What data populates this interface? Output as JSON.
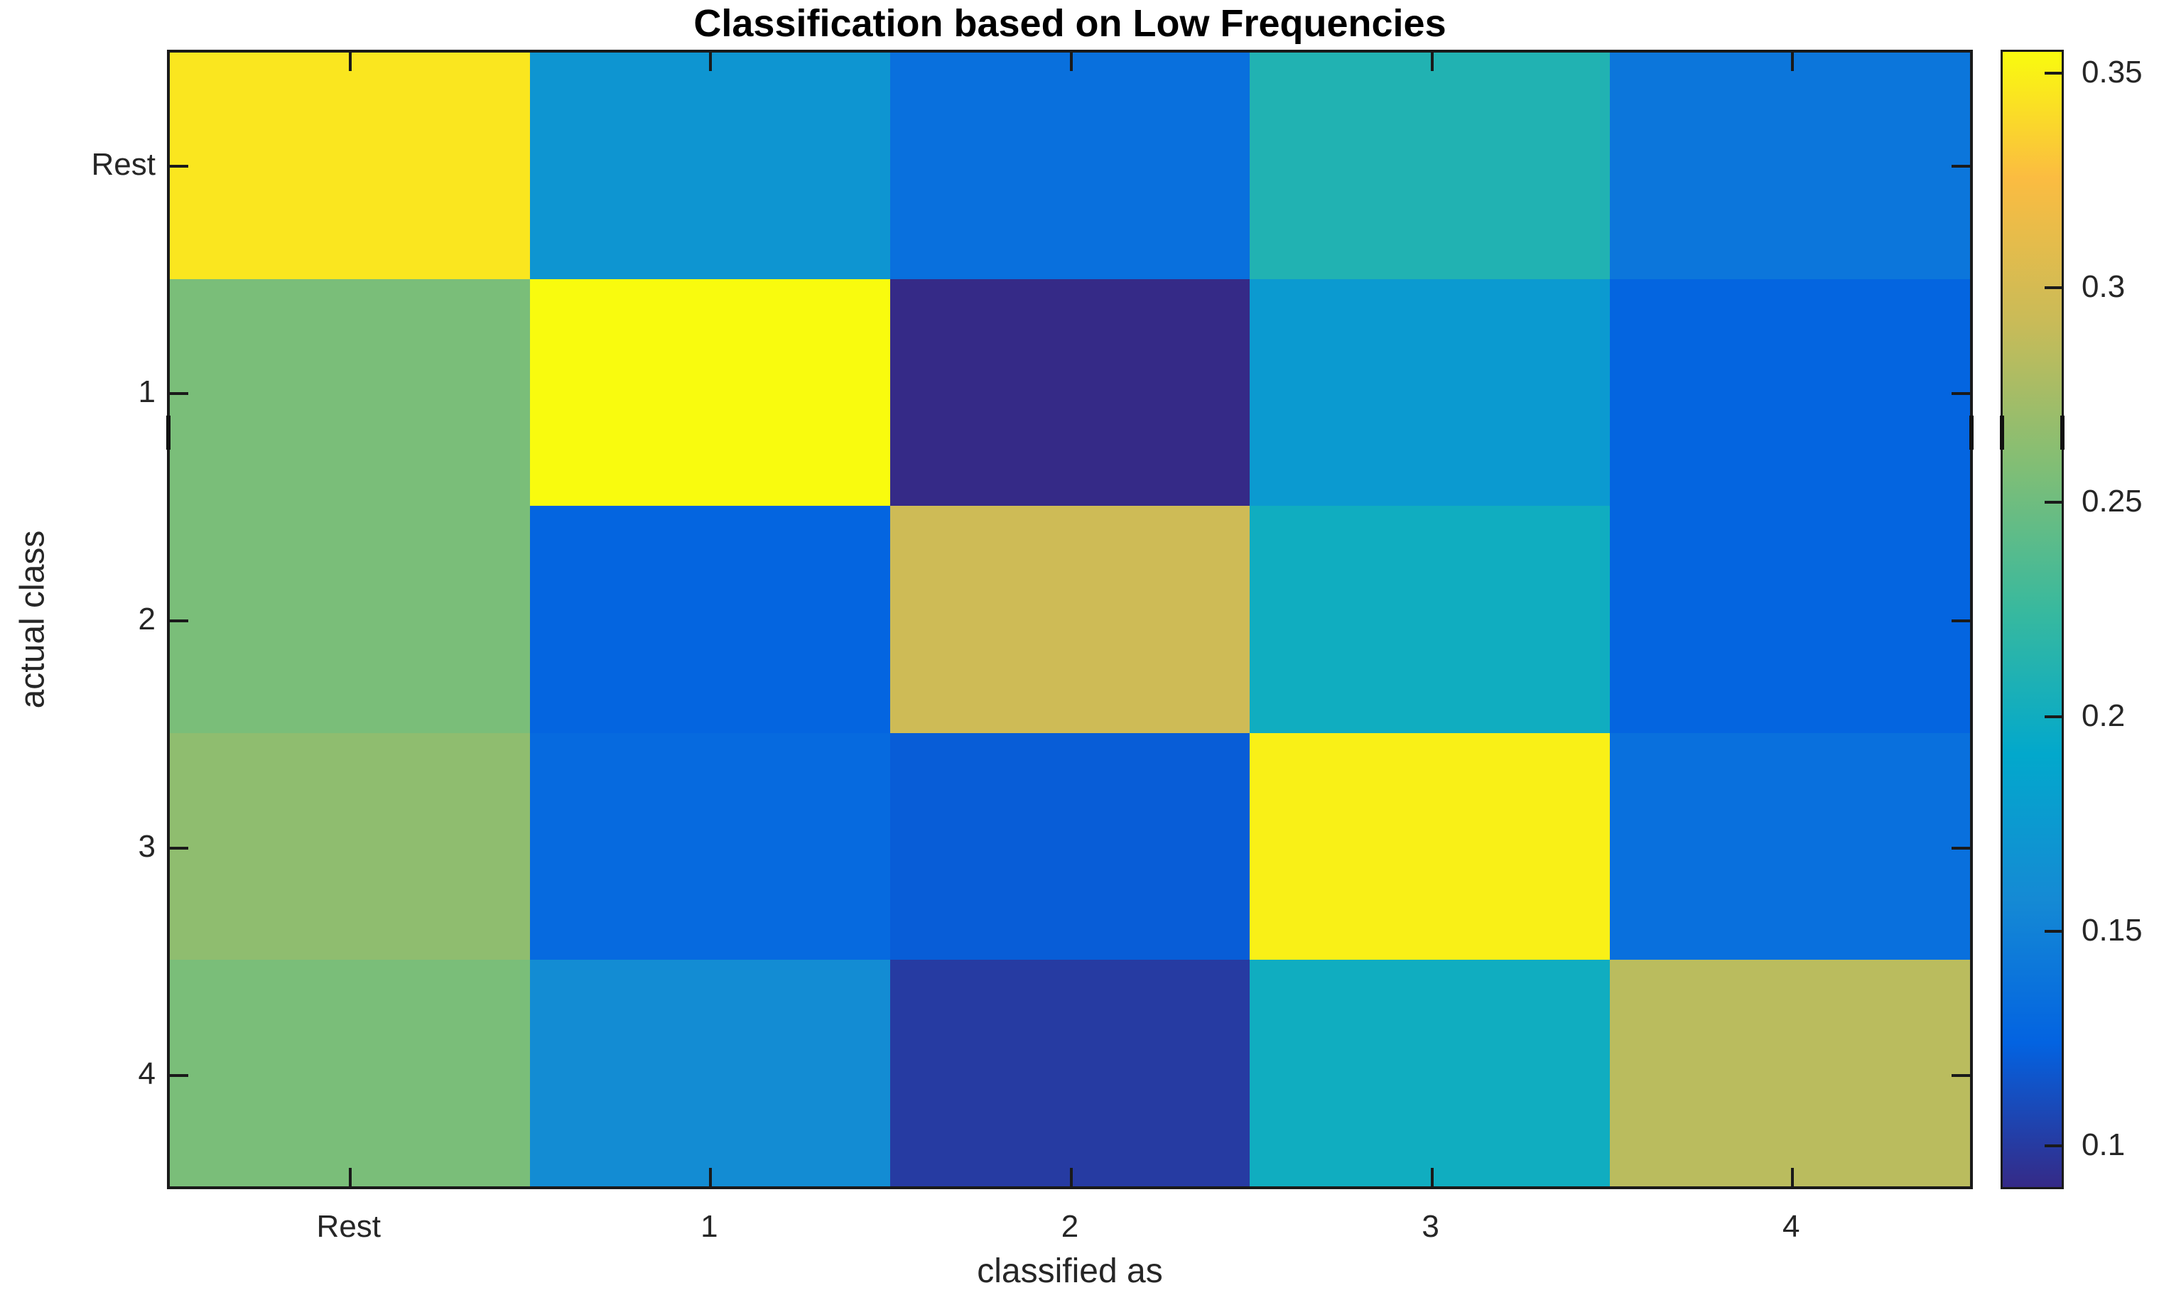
{
  "title": "Classification based on Low Frequencies",
  "xlabel": "classified as",
  "ylabel": "actual class",
  "colors": {
    "background": "#ffffff",
    "axis_line": "#1a1a1a",
    "tick_label": "#262626",
    "title": "#000000"
  },
  "chart_data": {
    "type": "heatmap",
    "title": "Classification based on Low Frequencies",
    "xlabel": "classified as",
    "ylabel": "actual class",
    "x_categories": [
      "Rest",
      "1",
      "2",
      "3",
      "4"
    ],
    "y_categories": [
      "Rest",
      "1",
      "2",
      "3",
      "4"
    ],
    "matrix": [
      [
        0.345,
        0.17,
        0.135,
        0.21,
        0.14
      ],
      [
        0.255,
        0.355,
        0.09,
        0.175,
        0.125
      ],
      [
        0.255,
        0.125,
        0.295,
        0.2,
        0.125
      ],
      [
        0.265,
        0.13,
        0.12,
        0.35,
        0.135
      ],
      [
        0.255,
        0.16,
        0.1,
        0.2,
        0.285
      ]
    ],
    "vmin": 0.09,
    "vmax": 0.355,
    "grid": false,
    "legend_position": "right-colorbar",
    "colorbar_ticks": [
      0.35,
      0.3,
      0.25,
      0.2,
      0.15,
      0.1
    ],
    "colorbar_tick_labels": [
      "0.35",
      "0.3",
      "0.25",
      "0.2",
      "0.15",
      "0.1"
    ],
    "colormap": {
      "name": "parula",
      "anchors": [
        [
          0.0,
          53,
          42,
          135
        ],
        [
          0.127,
          3,
          99,
          225
        ],
        [
          0.254,
          21,
          138,
          212
        ],
        [
          0.381,
          2,
          168,
          204
        ],
        [
          0.508,
          56,
          185,
          158
        ],
        [
          0.635,
          129,
          190,
          117
        ],
        [
          0.762,
          201,
          187,
          88
        ],
        [
          0.889,
          251,
          188,
          65
        ],
        [
          1.0,
          249,
          251,
          14
        ]
      ]
    }
  }
}
